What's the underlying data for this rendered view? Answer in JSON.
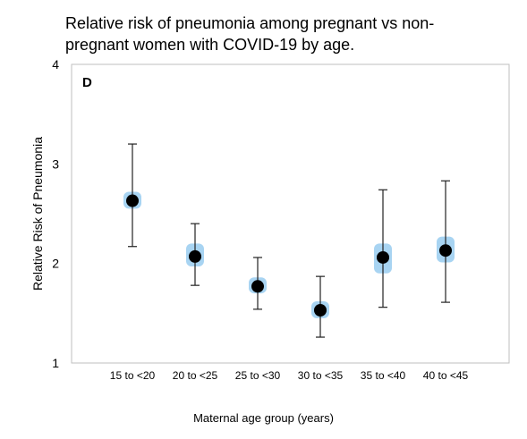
{
  "chart_data": {
    "type": "scatter",
    "title": "Relative risk of pneumonia among pregnant vs non-pregnant women with COVID-19 by age.",
    "panel_label": "D",
    "xlabel": "Maternal age group (years)",
    "ylabel": "Relative Risk of Pneumonia",
    "ylim": [
      1,
      4
    ],
    "yticks": [
      "1",
      "2",
      "3",
      "4"
    ],
    "categories": [
      "15 to <20",
      "20 to <25",
      "25 to <30",
      "30 to <35",
      "35 to <40",
      "40 to <45"
    ],
    "series": [
      {
        "values": [
          2.63,
          2.07,
          1.77,
          1.53,
          2.06,
          2.13
        ],
        "ci_lower": [
          2.17,
          1.78,
          1.54,
          1.26,
          1.56,
          1.61
        ],
        "ci_upper": [
          3.2,
          2.4,
          2.06,
          1.87,
          2.74,
          2.83
        ],
        "band_lower": [
          2.55,
          1.97,
          1.7,
          1.45,
          1.9,
          2.01
        ],
        "band_upper": [
          2.72,
          2.2,
          1.86,
          1.62,
          2.2,
          2.27
        ]
      }
    ],
    "colors": {
      "point": "#000000",
      "errorbar": "#222222",
      "band": "#a8d4f2",
      "frame": "#bfbfbf"
    },
    "grid": false,
    "legend": "none"
  }
}
